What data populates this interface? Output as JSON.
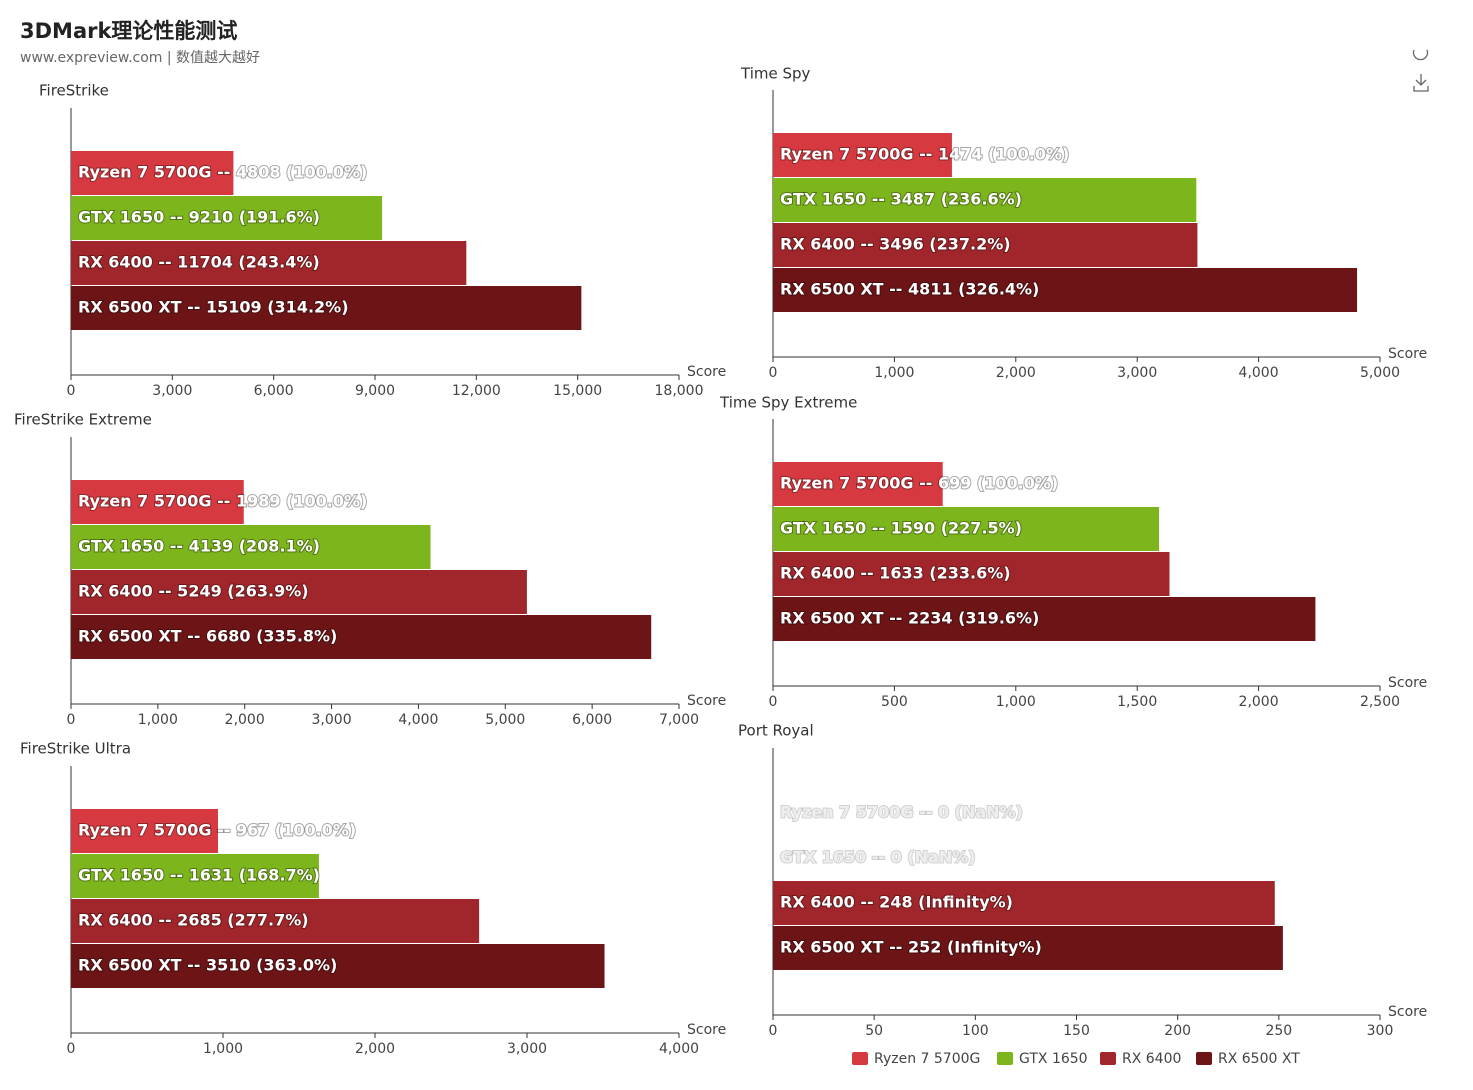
{
  "title": "3DMark理论性能测试",
  "subtitle": "www.expreview.com | 数值越大越好",
  "legend": "bottom",
  "chart_data": [
    {
      "type": "bar",
      "title": "FireStrike",
      "xlabel": "Score",
      "categories": [
        "Ryzen 7 5700G",
        "GTX 1650",
        "RX 6400",
        "RX 6500 XT"
      ],
      "values": [
        4808,
        9210,
        11704,
        15109
      ],
      "value_labels": [
        "Ryzen 7 5700G -- 4808 (100.0%)",
        "GTX 1650 -- 9210 (191.6%)",
        "RX 6400 -- 11704 (243.4%)",
        "RX 6500 XT -- 15109 (314.2%)"
      ],
      "colors": [
        "#d63a40",
        "#7db61c",
        "#a1262b",
        "#6d1416"
      ],
      "xlim": [
        0,
        18000
      ],
      "xticks": [
        0,
        {
          "value": 3000,
          "label": "3,000"
        },
        {
          "value": 6000,
          "label": "6,000"
        },
        {
          "value": 9000,
          "label": "9,000"
        },
        {
          "value": 12000,
          "label": "12,000"
        },
        {
          "value": 15000,
          "label": "15,000"
        },
        {
          "value": 18000,
          "label": "18,000"
        }
      ]
    },
    {
      "type": "bar",
      "title": "Time Spy",
      "xlabel": "Score",
      "categories": [
        "Ryzen 7 5700G",
        "GTX 1650",
        "RX 6400",
        "RX 6500 XT"
      ],
      "values": [
        1474,
        3487,
        3496,
        4811
      ],
      "value_labels": [
        "Ryzen 7 5700G -- 1474 (100.0%)",
        "GTX 1650 -- 3487 (236.6%)",
        "RX 6400 -- 3496 (237.2%)",
        "RX 6500 XT -- 4811 (326.4%)"
      ],
      "colors": [
        "#d63a40",
        "#7db61c",
        "#a1262b",
        "#6d1416"
      ],
      "xlim": [
        0,
        5000
      ],
      "xticks": [
        0,
        {
          "value": 1000,
          "label": "1,000"
        },
        {
          "value": 2000,
          "label": "2,000"
        },
        {
          "value": 3000,
          "label": "3,000"
        },
        {
          "value": 4000,
          "label": "4,000"
        },
        {
          "value": 5000,
          "label": "5,000"
        }
      ]
    },
    {
      "type": "bar",
      "title": "FireStrike Extreme",
      "xlabel": "Score",
      "categories": [
        "Ryzen 7 5700G",
        "GTX 1650",
        "RX 6400",
        "RX 6500 XT"
      ],
      "values": [
        1989,
        4139,
        5249,
        6680
      ],
      "value_labels": [
        "Ryzen 7 5700G -- 1989 (100.0%)",
        "GTX 1650 -- 4139 (208.1%)",
        "RX 6400 -- 5249 (263.9%)",
        "RX 6500 XT -- 6680 (335.8%)"
      ],
      "colors": [
        "#d63a40",
        "#7db61c",
        "#a1262b",
        "#6d1416"
      ],
      "xlim": [
        0,
        7000
      ],
      "xticks": [
        0,
        {
          "value": 1000,
          "label": "1,000"
        },
        {
          "value": 2000,
          "label": "2,000"
        },
        {
          "value": 3000,
          "label": "3,000"
        },
        {
          "value": 4000,
          "label": "4,000"
        },
        {
          "value": 5000,
          "label": "5,000"
        },
        {
          "value": 6000,
          "label": "6,000"
        },
        {
          "value": 7000,
          "label": "7,000"
        }
      ]
    },
    {
      "type": "bar",
      "title": "Time Spy Extreme",
      "xlabel": "Score",
      "categories": [
        "Ryzen 7 5700G",
        "GTX 1650",
        "RX 6400",
        "RX 6500 XT"
      ],
      "values": [
        699,
        1590,
        1633,
        2234
      ],
      "value_labels": [
        "Ryzen 7 5700G -- 699 (100.0%)",
        "GTX 1650 -- 1590 (227.5%)",
        "RX 6400 -- 1633 (233.6%)",
        "RX 6500 XT -- 2234 (319.6%)"
      ],
      "colors": [
        "#d63a40",
        "#7db61c",
        "#a1262b",
        "#6d1416"
      ],
      "xlim": [
        0,
        2500
      ],
      "xticks": [
        0,
        500,
        {
          "value": 1000,
          "label": "1,000"
        },
        {
          "value": 1500,
          "label": "1,500"
        },
        {
          "value": 2000,
          "label": "2,000"
        },
        {
          "value": 2500,
          "label": "2,500"
        }
      ]
    },
    {
      "type": "bar",
      "title": "FireStrike Ultra",
      "xlabel": "Score",
      "categories": [
        "Ryzen 7 5700G",
        "GTX 1650",
        "RX 6400",
        "RX 6500 XT"
      ],
      "values": [
        967,
        1631,
        2685,
        3510
      ],
      "value_labels": [
        "Ryzen 7 5700G -- 967 (100.0%)",
        "GTX 1650 -- 1631 (168.7%)",
        "RX 6400 -- 2685 (277.7%)",
        "RX 6500 XT -- 3510 (363.0%)"
      ],
      "colors": [
        "#d63a40",
        "#7db61c",
        "#a1262b",
        "#6d1416"
      ],
      "xlim": [
        0,
        4000
      ],
      "xticks": [
        0,
        {
          "value": 1000,
          "label": "1,000"
        },
        {
          "value": 2000,
          "label": "2,000"
        },
        {
          "value": 3000,
          "label": "3,000"
        },
        {
          "value": 4000,
          "label": "4,000"
        }
      ]
    },
    {
      "type": "bar",
      "title": "Port Royal",
      "xlabel": "Score",
      "categories": [
        "Ryzen 7 5700G",
        "GTX 1650",
        "RX 6400",
        "RX 6500 XT"
      ],
      "values": [
        0,
        0,
        248,
        252
      ],
      "value_labels": [
        "Ryzen 7 5700G -- 0 (NaN%)",
        "GTX 1650 -- 0 (NaN%)",
        "RX 6400 -- 248 (Infinity%)",
        "RX 6500 XT -- 252 (Infinity%)"
      ],
      "colors": [
        "#d63a40",
        "#7db61c",
        "#a1262b",
        "#6d1416"
      ],
      "xlim": [
        0,
        300
      ],
      "xticks": [
        0,
        50,
        100,
        150,
        200,
        250,
        300
      ]
    }
  ]
}
